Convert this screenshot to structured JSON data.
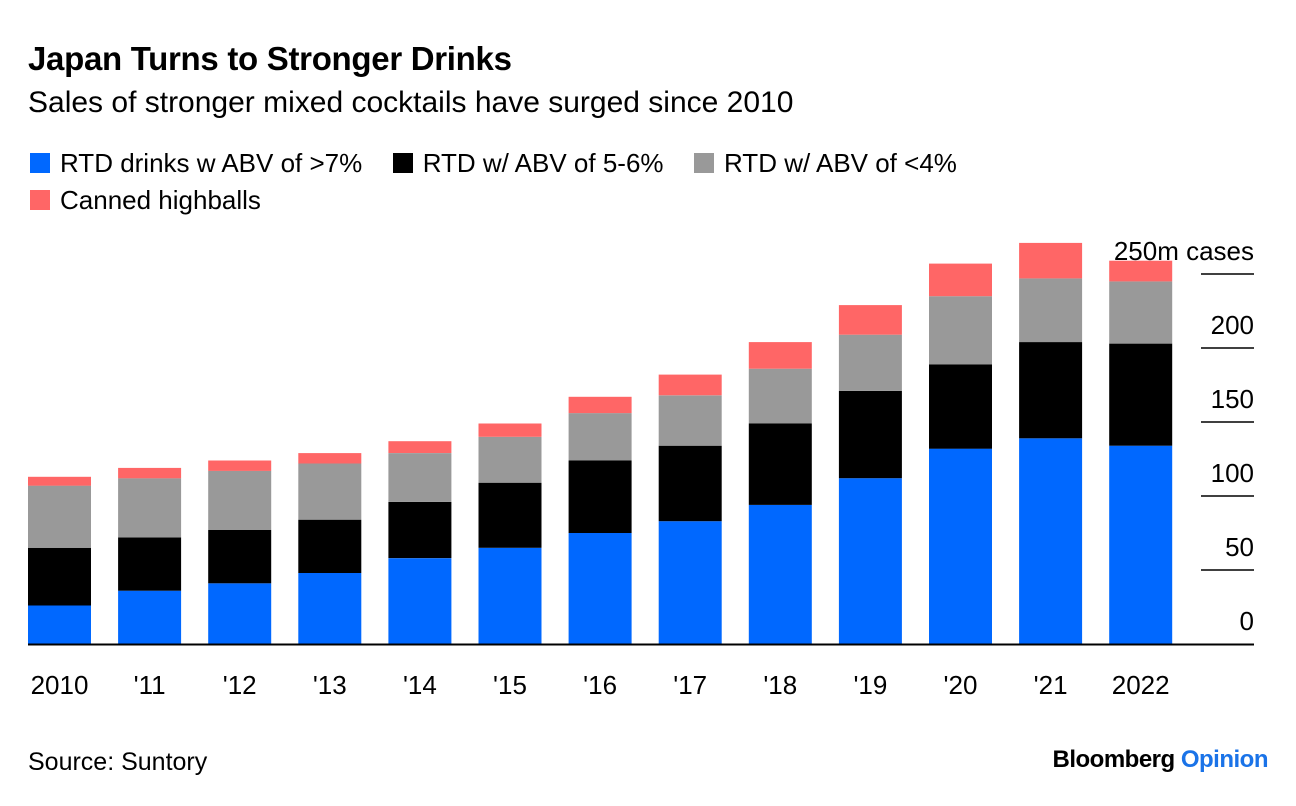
{
  "title": "Japan Turns to Stronger Drinks",
  "subtitle": "Sales of stronger mixed cocktails have surged since 2010",
  "source": "Source: Suntory",
  "brand": {
    "name": "Bloomberg",
    "section": "Opinion"
  },
  "colors": {
    "rtd_gt7": "#0068ff",
    "rtd_5_6": "#000000",
    "rtd_lt4": "#999999",
    "highballs": "#ff6666",
    "axis": "#000000",
    "brand_accent": "#1a73e8"
  },
  "chart_data": {
    "type": "bar",
    "stacked": true,
    "title": "Japan Turns to Stronger Drinks",
    "subtitle": "Sales of stronger mixed cocktails have surged since 2010",
    "ylabel": "m cases",
    "y_unit_label": "250m cases",
    "ylim": [
      0,
      250
    ],
    "yticks": [
      0,
      50,
      100,
      150,
      200,
      250
    ],
    "ytick_labels": [
      "0",
      "50",
      "100",
      "150",
      "200",
      "250m cases"
    ],
    "legend_position": "top",
    "categories": [
      "2010",
      "'11",
      "'12",
      "'13",
      "'14",
      "'15",
      "'16",
      "'17",
      "'18",
      "'19",
      "'20",
      "'21",
      "2022"
    ],
    "series": [
      {
        "name": "RTD drinks w ABV of >7%",
        "color": "#0068ff",
        "values": [
          26,
          36,
          41,
          48,
          58,
          65,
          75,
          83,
          94,
          112,
          132,
          139,
          134
        ]
      },
      {
        "name": "RTD w/ ABV of 5-6%",
        "color": "#000000",
        "values": [
          39,
          36,
          36,
          36,
          38,
          44,
          49,
          51,
          55,
          59,
          57,
          65,
          69
        ]
      },
      {
        "name": "RTD w/ ABV of <4%",
        "color": "#999999",
        "values": [
          42,
          40,
          40,
          38,
          33,
          31,
          32,
          34,
          37,
          38,
          46,
          43,
          42
        ]
      },
      {
        "name": "Canned highballs",
        "color": "#ff6666",
        "values": [
          6,
          7,
          7,
          7,
          8,
          9,
          11,
          14,
          18,
          20,
          22,
          24,
          14
        ]
      }
    ]
  }
}
